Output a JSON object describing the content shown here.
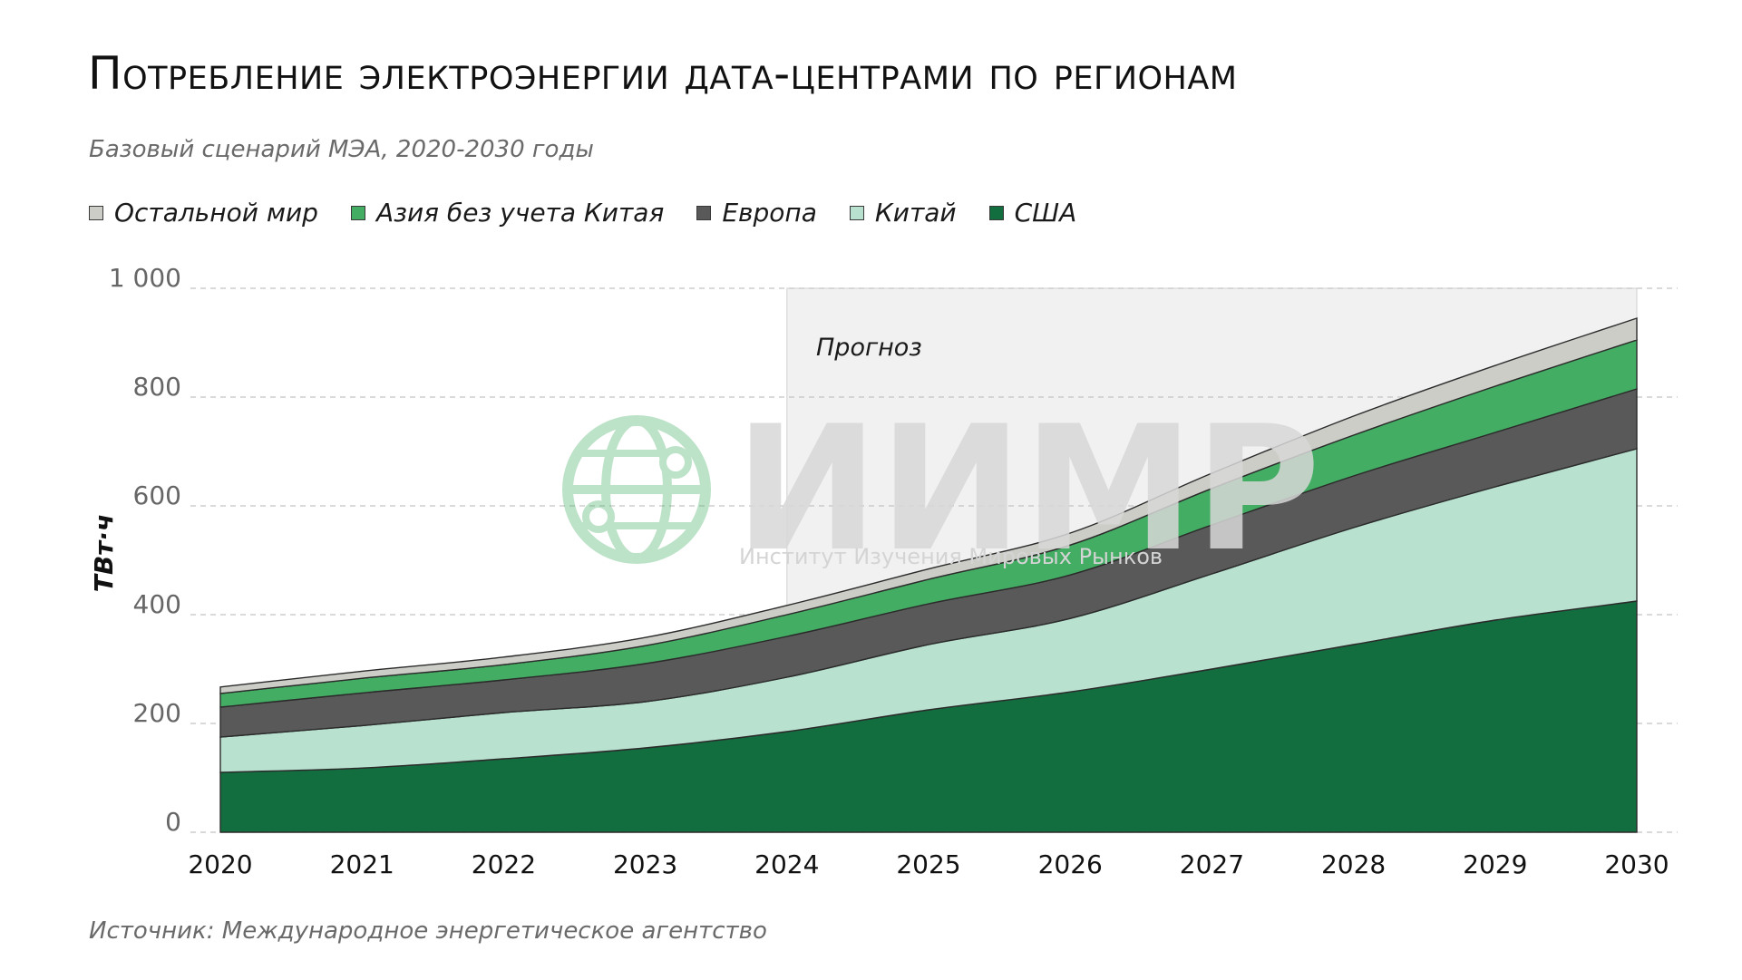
{
  "title": "Потребление электроэнергии дата-центрами по регионам",
  "subtitle": "Базовый сценарий МЭА, 2020-2030 годы",
  "source": "Источник: Международное энергетическое агентство",
  "forecast_label": "Прогноз",
  "watermark": {
    "title": "ИИМР",
    "subtitle": "Институт Изучения Мировых Рынков"
  },
  "legend": [
    {
      "name": "Остальной мир",
      "color": "#cdcdc8"
    },
    {
      "name": "Азия без учета Китая",
      "color": "#43ad63"
    },
    {
      "name": "Европа",
      "color": "#595959"
    },
    {
      "name": "Китай",
      "color": "#b8e1d0"
    },
    {
      "name": "США",
      "color": "#126e3f"
    }
  ],
  "chart_data": {
    "type": "area",
    "stacked": true,
    "ylabel": "ТВт·ч",
    "xlabel": "",
    "ylim": [
      0,
      1000
    ],
    "y_ticks": [
      "0",
      "200",
      "400",
      "600",
      "800",
      "1 000"
    ],
    "y_tick_values": [
      0,
      200,
      400,
      600,
      800,
      1000
    ],
    "x": [
      "2020",
      "2021",
      "2022",
      "2023",
      "2024",
      "2025",
      "2026",
      "2027",
      "2028",
      "2029",
      "2030"
    ],
    "forecast_from": "2024",
    "grid": "horizontal dashed",
    "series": [
      {
        "name": "США",
        "color": "#126e3f",
        "values": [
          110,
          118,
          135,
          155,
          185,
          225,
          258,
          300,
          345,
          390,
          425
        ]
      },
      {
        "name": "Китай",
        "color": "#b8e1d0",
        "values": [
          65,
          78,
          85,
          85,
          100,
          120,
          135,
          175,
          215,
          245,
          280
        ]
      },
      {
        "name": "Европа",
        "color": "#595959",
        "values": [
          55,
          60,
          60,
          70,
          75,
          75,
          80,
          90,
          95,
          100,
          110
        ]
      },
      {
        "name": "Азия без учета Китая",
        "color": "#43ad63",
        "values": [
          25,
          27,
          28,
          33,
          40,
          45,
          55,
          67,
          75,
          85,
          90
        ]
      },
      {
        "name": "Остальной мир",
        "color": "#cdcdc8",
        "values": [
          12,
          13,
          14,
          15,
          17,
          19,
          22,
          28,
          35,
          38,
          40
        ]
      }
    ]
  }
}
